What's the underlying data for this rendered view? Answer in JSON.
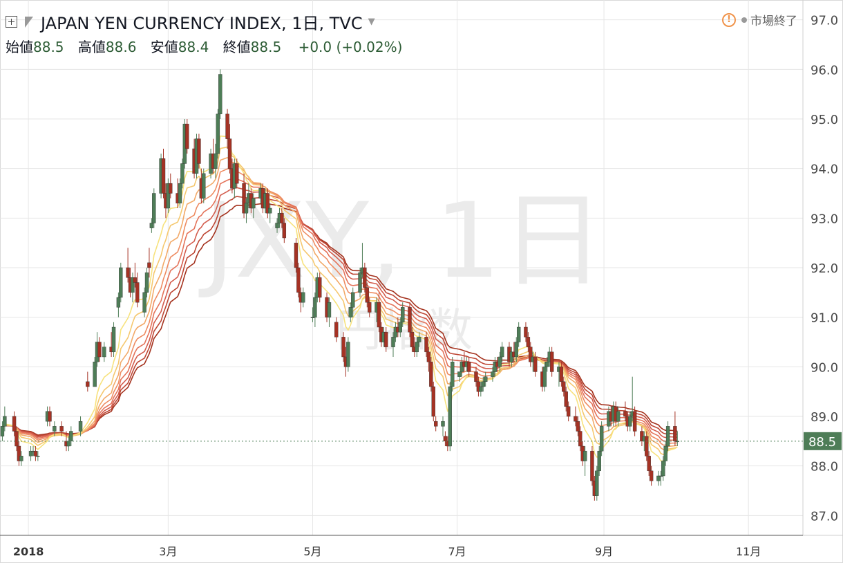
{
  "header": {
    "symbol_title": "JAPAN YEN CURRENCY INDEX, 1日, TVC",
    "market_status": "市場終了",
    "alert_glyph": "!"
  },
  "ohlc": {
    "open_label": "始値",
    "open": "88.5",
    "high_label": "高値",
    "high": "88.6",
    "low_label": "安値",
    "low": "88.4",
    "close_label": "終値",
    "close": "88.5",
    "change": "+0.0 (+0.02%)"
  },
  "watermark": {
    "ticker": "JXY, 1日",
    "name": "円指数"
  },
  "price_tag": "88.5",
  "colors": {
    "up": "#4e7d57",
    "down": "#a53224",
    "grid": "#e6e6e6",
    "price_tag_bg": "#4e7d57",
    "ribbon_fast": "#f7e27d",
    "ribbon_slow": "#a4321e"
  },
  "chart_data": {
    "type": "candlestick",
    "title": "JAPAN YEN CURRENCY INDEX, 1日, TVC",
    "y_axis": {
      "ticks": [
        "87.0",
        "88.0",
        "89.0",
        "90.0",
        "91.0",
        "92.0",
        "93.0",
        "94.0",
        "95.0",
        "96.0",
        "97.0"
      ],
      "range": [
        86.6,
        97.4
      ],
      "position": "right"
    },
    "x_axis": {
      "ticks": [
        "2018",
        "3月",
        "5月",
        "7月",
        "9月",
        "11月"
      ],
      "range": [
        "2017-12-20",
        "2018-11-24"
      ]
    },
    "last_price": 88.5,
    "grid": true,
    "overlay": "moving-average ribbon (8 lines, yellow to dark red)",
    "candles": [
      [
        "2017-12-21",
        88.6,
        88.9,
        88.5,
        88.8
      ],
      [
        "2017-12-22",
        88.8,
        89.2,
        88.7,
        89.0
      ],
      [
        "2017-12-26",
        89.0,
        89.1,
        88.6,
        88.7
      ],
      [
        "2017-12-27",
        88.7,
        88.8,
        88.3,
        88.4
      ],
      [
        "2017-12-28",
        88.4,
        88.5,
        88.0,
        88.1
      ],
      [
        "2017-12-29",
        88.1,
        88.3,
        88.0,
        88.2
      ],
      [
        "2018-01-02",
        88.2,
        88.4,
        88.1,
        88.3
      ],
      [
        "2018-01-03",
        88.3,
        88.4,
        88.2,
        88.3
      ],
      [
        "2018-01-04",
        88.3,
        88.4,
        88.1,
        88.2
      ],
      [
        "2018-01-05",
        88.2,
        88.3,
        88.1,
        88.2
      ],
      [
        "2018-01-09",
        88.9,
        89.2,
        88.8,
        89.1
      ],
      [
        "2018-01-10",
        89.1,
        89.2,
        88.8,
        88.9
      ],
      [
        "2018-01-12",
        88.7,
        88.9,
        88.6,
        88.8
      ],
      [
        "2018-01-15",
        88.8,
        88.9,
        88.6,
        88.7
      ],
      [
        "2018-01-17",
        88.5,
        88.7,
        88.3,
        88.4
      ],
      [
        "2018-01-18",
        88.4,
        88.6,
        88.3,
        88.5
      ],
      [
        "2018-01-19",
        88.5,
        88.8,
        88.4,
        88.7
      ],
      [
        "2018-01-23",
        88.7,
        89.0,
        88.6,
        88.9
      ],
      [
        "2018-01-26",
        89.7,
        89.9,
        89.5,
        89.6
      ],
      [
        "2018-01-29",
        89.6,
        90.2,
        89.6,
        90.1
      ],
      [
        "2018-01-30",
        90.1,
        90.7,
        90.0,
        90.5
      ],
      [
        "2018-01-31",
        90.5,
        90.6,
        90.1,
        90.2
      ],
      [
        "2018-02-02",
        90.2,
        90.5,
        90.1,
        90.4
      ],
      [
        "2018-02-05",
        90.4,
        90.7,
        90.2,
        90.3
      ],
      [
        "2018-02-06",
        90.3,
        90.9,
        90.2,
        90.8
      ],
      [
        "2018-02-08",
        91.2,
        91.5,
        91.0,
        91.4
      ],
      [
        "2018-02-09",
        91.4,
        92.1,
        91.3,
        92.0
      ],
      [
        "2018-02-12",
        92.0,
        92.4,
        91.7,
        91.8
      ],
      [
        "2018-02-13",
        91.8,
        92.0,
        91.4,
        91.5
      ],
      [
        "2018-02-14",
        91.5,
        91.9,
        91.3,
        91.8
      ],
      [
        "2018-02-15",
        91.8,
        92.1,
        91.6,
        91.7
      ],
      [
        "2018-02-16",
        91.7,
        91.9,
        91.2,
        91.3
      ],
      [
        "2018-02-19",
        91.1,
        91.6,
        91.0,
        91.5
      ],
      [
        "2018-02-20",
        91.5,
        92.0,
        91.4,
        91.9
      ],
      [
        "2018-02-21",
        92.1,
        92.4,
        91.8,
        92.0
      ],
      [
        "2018-02-22",
        92.8,
        93.0,
        92.7,
        92.9
      ],
      [
        "2018-02-23",
        92.9,
        93.6,
        92.8,
        93.5
      ],
      [
        "2018-02-26",
        93.5,
        94.3,
        93.4,
        94.2
      ],
      [
        "2018-02-27",
        94.2,
        94.4,
        93.4,
        93.5
      ],
      [
        "2018-02-28",
        93.5,
        93.7,
        93.0,
        93.2
      ],
      [
        "2018-03-01",
        93.2,
        93.8,
        93.1,
        93.7
      ],
      [
        "2018-03-02",
        93.7,
        93.9,
        93.4,
        93.5
      ],
      [
        "2018-03-05",
        93.5,
        93.8,
        93.2,
        93.3
      ],
      [
        "2018-03-06",
        93.3,
        93.8,
        93.2,
        93.7
      ],
      [
        "2018-03-07",
        93.7,
        94.2,
        93.6,
        94.1
      ],
      [
        "2018-03-08",
        94.1,
        95.0,
        94.0,
        94.9
      ],
      [
        "2018-03-09",
        94.9,
        95.0,
        94.3,
        94.4
      ],
      [
        "2018-03-12",
        94.4,
        94.6,
        93.8,
        93.9
      ],
      [
        "2018-03-13",
        93.9,
        94.7,
        93.8,
        94.6
      ],
      [
        "2018-03-14",
        94.6,
        94.7,
        94.0,
        94.1
      ],
      [
        "2018-03-15",
        93.8,
        94.0,
        93.3,
        93.4
      ],
      [
        "2018-03-16",
        93.4,
        94.0,
        93.3,
        93.9
      ],
      [
        "2018-03-19",
        93.9,
        94.4,
        93.8,
        94.3
      ],
      [
        "2018-03-20",
        94.3,
        94.6,
        93.9,
        94.0
      ],
      [
        "2018-03-21",
        94.0,
        94.5,
        93.8,
        94.3
      ],
      [
        "2018-03-22",
        94.3,
        95.2,
        94.2,
        95.1
      ],
      [
        "2018-03-23",
        95.1,
        96.0,
        95.0,
        95.9
      ],
      [
        "2018-03-26",
        95.1,
        95.2,
        94.4,
        94.6
      ],
      [
        "2018-03-27",
        94.6,
        94.9,
        93.9,
        94.0
      ],
      [
        "2018-03-28",
        94.0,
        94.2,
        93.5,
        93.6
      ],
      [
        "2018-03-29",
        93.6,
        94.2,
        93.4,
        94.1
      ],
      [
        "2018-03-30",
        94.1,
        94.2,
        93.6,
        93.7
      ],
      [
        "2018-04-02",
        93.7,
        93.9,
        93.0,
        93.1
      ],
      [
        "2018-04-03",
        93.1,
        93.4,
        92.9,
        93.3
      ],
      [
        "2018-04-04",
        93.3,
        93.7,
        93.2,
        93.5
      ],
      [
        "2018-04-05",
        93.5,
        93.6,
        93.1,
        93.2
      ],
      [
        "2018-04-06",
        93.2,
        93.5,
        93.0,
        93.4
      ],
      [
        "2018-04-09",
        93.4,
        93.7,
        93.3,
        93.6
      ],
      [
        "2018-04-10",
        93.6,
        93.7,
        93.1,
        93.2
      ],
      [
        "2018-04-11",
        93.2,
        93.6,
        93.1,
        93.5
      ],
      [
        "2018-04-12",
        93.5,
        93.6,
        93.0,
        93.1
      ],
      [
        "2018-04-13",
        93.1,
        93.3,
        92.9,
        93.2
      ],
      [
        "2018-04-16",
        92.8,
        93.0,
        92.7,
        92.9
      ],
      [
        "2018-04-17",
        92.9,
        93.2,
        92.8,
        93.1
      ],
      [
        "2018-04-18",
        93.1,
        93.2,
        92.8,
        92.9
      ],
      [
        "2018-04-19",
        92.9,
        93.0,
        92.5,
        92.6
      ],
      [
        "2018-04-24",
        92.5,
        92.6,
        91.9,
        92.0
      ],
      [
        "2018-04-25",
        92.0,
        92.1,
        91.4,
        91.5
      ],
      [
        "2018-04-26",
        91.5,
        91.6,
        91.1,
        91.3
      ],
      [
        "2018-04-27",
        91.3,
        91.6,
        91.2,
        91.5
      ],
      [
        "2018-05-01",
        91.0,
        91.2,
        90.9,
        91.0
      ],
      [
        "2018-05-02",
        91.0,
        91.5,
        90.8,
        91.4
      ],
      [
        "2018-05-03",
        91.4,
        91.9,
        91.3,
        91.8
      ],
      [
        "2018-05-04",
        91.8,
        91.9,
        91.3,
        91.4
      ],
      [
        "2018-05-07",
        91.4,
        91.5,
        90.9,
        91.0
      ],
      [
        "2018-05-08",
        91.0,
        91.4,
        90.8,
        91.3
      ],
      [
        "2018-05-11",
        90.9,
        91.0,
        90.5,
        90.6
      ],
      [
        "2018-05-14",
        90.6,
        90.7,
        90.1,
        90.2
      ],
      [
        "2018-05-15",
        90.2,
        90.4,
        89.8,
        90.0
      ],
      [
        "2018-05-16",
        90.0,
        90.6,
        89.9,
        90.5
      ],
      [
        "2018-05-17",
        91.0,
        91.3,
        90.9,
        91.2
      ],
      [
        "2018-05-18",
        91.2,
        91.6,
        91.0,
        91.5
      ],
      [
        "2018-05-21",
        91.5,
        92.0,
        91.4,
        91.9
      ],
      [
        "2018-05-22",
        91.9,
        92.5,
        91.8,
        92.0
      ],
      [
        "2018-05-23",
        92.0,
        92.1,
        91.5,
        91.6
      ],
      [
        "2018-05-24",
        91.6,
        91.7,
        91.2,
        91.3
      ],
      [
        "2018-05-25",
        91.3,
        91.4,
        91.0,
        91.1
      ],
      [
        "2018-05-28",
        91.1,
        91.4,
        90.9,
        91.3
      ],
      [
        "2018-05-29",
        91.3,
        91.5,
        90.7,
        90.8
      ],
      [
        "2018-05-30",
        90.8,
        90.9,
        90.4,
        90.5
      ],
      [
        "2018-05-31",
        90.5,
        90.8,
        90.4,
        90.7
      ],
      [
        "2018-06-01",
        90.7,
        90.8,
        90.3,
        90.4
      ],
      [
        "2018-06-04",
        90.4,
        90.7,
        90.2,
        90.6
      ],
      [
        "2018-06-05",
        90.6,
        90.9,
        90.5,
        90.8
      ],
      [
        "2018-06-06",
        90.8,
        91.0,
        90.6,
        90.7
      ],
      [
        "2018-06-07",
        90.7,
        91.0,
        90.6,
        90.9
      ],
      [
        "2018-06-08",
        90.9,
        91.3,
        90.8,
        91.2
      ],
      [
        "2018-06-11",
        91.2,
        91.3,
        90.6,
        90.7
      ],
      [
        "2018-06-12",
        90.7,
        90.8,
        90.3,
        90.4
      ],
      [
        "2018-06-13",
        90.4,
        90.6,
        90.2,
        90.3
      ],
      [
        "2018-06-14",
        90.3,
        90.6,
        90.2,
        90.5
      ],
      [
        "2018-06-15",
        90.5,
        90.7,
        90.4,
        90.6
      ],
      [
        "2018-06-18",
        90.6,
        90.7,
        90.2,
        90.3
      ],
      [
        "2018-06-19",
        90.3,
        90.4,
        89.9,
        90.1
      ],
      [
        "2018-06-20",
        90.1,
        90.2,
        89.5,
        89.6
      ],
      [
        "2018-06-21",
        89.6,
        89.7,
        88.9,
        89.0
      ],
      [
        "2018-06-22",
        88.9,
        89.0,
        88.7,
        88.8
      ],
      [
        "2018-06-25",
        88.8,
        89.0,
        88.6,
        88.9
      ],
      [
        "2018-06-26",
        88.6,
        88.7,
        88.4,
        88.5
      ],
      [
        "2018-06-27",
        88.5,
        88.6,
        88.3,
        88.4
      ],
      [
        "2018-06-28",
        88.4,
        89.7,
        88.3,
        89.6
      ],
      [
        "2018-06-29",
        89.6,
        90.2,
        89.5,
        90.1
      ],
      [
        "2018-07-02",
        89.8,
        89.9,
        89.7,
        89.9
      ],
      [
        "2018-07-03",
        89.9,
        90.2,
        89.8,
        90.1
      ],
      [
        "2018-07-04",
        90.1,
        90.3,
        89.9,
        90.0
      ],
      [
        "2018-07-05",
        90.0,
        90.2,
        89.9,
        90.1
      ],
      [
        "2018-07-06",
        90.1,
        90.2,
        89.8,
        89.9
      ],
      [
        "2018-07-09",
        89.9,
        90.0,
        89.6,
        89.7
      ],
      [
        "2018-07-10",
        89.7,
        89.8,
        89.4,
        89.5
      ],
      [
        "2018-07-11",
        89.5,
        89.7,
        89.4,
        89.6
      ],
      [
        "2018-07-12",
        89.6,
        89.8,
        89.5,
        89.7
      ],
      [
        "2018-07-13",
        89.7,
        89.9,
        89.6,
        89.8
      ],
      [
        "2018-07-16",
        89.8,
        90.0,
        89.7,
        89.9
      ],
      [
        "2018-07-17",
        89.9,
        90.2,
        89.8,
        90.1
      ],
      [
        "2018-07-18",
        90.1,
        90.2,
        89.9,
        90.0
      ],
      [
        "2018-07-19",
        90.0,
        90.3,
        89.9,
        90.2
      ],
      [
        "2018-07-20",
        90.2,
        90.5,
        90.1,
        90.4
      ],
      [
        "2018-07-23",
        90.4,
        90.5,
        90.0,
        90.1
      ],
      [
        "2018-07-24",
        90.1,
        90.4,
        90.0,
        90.3
      ],
      [
        "2018-07-25",
        90.3,
        90.5,
        90.1,
        90.2
      ],
      [
        "2018-07-26",
        90.2,
        90.6,
        90.1,
        90.5
      ],
      [
        "2018-07-27",
        90.5,
        90.9,
        90.4,
        90.8
      ],
      [
        "2018-07-30",
        90.8,
        90.9,
        90.5,
        90.6
      ],
      [
        "2018-07-31",
        90.6,
        90.7,
        90.3,
        90.4
      ],
      [
        "2018-08-01",
        90.4,
        90.5,
        90.0,
        90.1
      ],
      [
        "2018-08-02",
        90.1,
        90.3,
        89.9,
        90.2
      ],
      [
        "2018-08-03",
        90.2,
        90.3,
        89.8,
        89.9
      ],
      [
        "2018-08-06",
        89.9,
        90.0,
        89.5,
        89.6
      ],
      [
        "2018-08-07",
        89.6,
        90.1,
        89.5,
        90.0
      ],
      [
        "2018-08-08",
        90.0,
        90.2,
        89.9,
        90.1
      ],
      [
        "2018-08-09",
        90.1,
        90.4,
        90.0,
        90.3
      ],
      [
        "2018-08-10",
        90.3,
        90.4,
        89.8,
        89.9
      ],
      [
        "2018-08-13",
        89.9,
        90.1,
        89.6,
        90.0
      ],
      [
        "2018-08-14",
        90.0,
        90.1,
        89.6,
        89.7
      ],
      [
        "2018-08-15",
        89.7,
        89.8,
        89.4,
        89.5
      ],
      [
        "2018-08-16",
        89.5,
        89.6,
        89.1,
        89.2
      ],
      [
        "2018-08-17",
        89.2,
        89.3,
        88.9,
        89.0
      ],
      [
        "2018-08-20",
        89.0,
        89.2,
        88.8,
        88.9
      ],
      [
        "2018-08-21",
        88.9,
        89.0,
        88.6,
        88.7
      ],
      [
        "2018-08-22",
        88.7,
        88.8,
        88.3,
        88.4
      ],
      [
        "2018-08-23",
        88.4,
        88.5,
        88.0,
        88.1
      ],
      [
        "2018-08-24",
        88.1,
        88.4,
        87.8,
        88.3
      ],
      [
        "2018-08-27",
        88.3,
        88.4,
        87.6,
        87.7
      ],
      [
        "2018-08-28",
        87.7,
        87.8,
        87.3,
        87.4
      ],
      [
        "2018-08-29",
        87.4,
        88.0,
        87.3,
        87.9
      ],
      [
        "2018-08-30",
        87.9,
        88.4,
        87.8,
        88.3
      ],
      [
        "2018-08-31",
        88.3,
        88.9,
        88.2,
        88.8
      ],
      [
        "2018-09-03",
        88.8,
        89.2,
        88.7,
        89.1
      ],
      [
        "2018-09-04",
        89.1,
        89.2,
        88.8,
        88.9
      ],
      [
        "2018-09-05",
        88.9,
        89.3,
        88.8,
        89.2
      ],
      [
        "2018-09-06",
        89.2,
        89.3,
        88.8,
        88.9
      ],
      [
        "2018-09-07",
        88.9,
        89.2,
        88.8,
        89.1
      ],
      [
        "2018-09-10",
        89.1,
        89.3,
        88.9,
        89.0
      ],
      [
        "2018-09-11",
        89.0,
        89.1,
        88.7,
        88.8
      ],
      [
        "2018-09-12",
        88.8,
        89.1,
        88.7,
        89.0
      ],
      [
        "2018-09-13",
        89.0,
        89.8,
        88.9,
        89.1
      ],
      [
        "2018-09-14",
        89.1,
        89.2,
        88.6,
        88.7
      ],
      [
        "2018-09-17",
        88.7,
        88.8,
        88.4,
        88.5
      ],
      [
        "2018-09-18",
        88.5,
        88.7,
        88.3,
        88.6
      ],
      [
        "2018-09-19",
        88.6,
        88.7,
        88.1,
        88.2
      ],
      [
        "2018-09-20",
        88.2,
        88.3,
        87.8,
        87.9
      ],
      [
        "2018-09-21",
        87.9,
        88.0,
        87.6,
        87.7
      ],
      [
        "2018-09-24",
        87.7,
        87.9,
        87.6,
        87.8
      ],
      [
        "2018-09-25",
        87.8,
        87.9,
        87.6,
        87.8
      ],
      [
        "2018-09-26",
        87.8,
        88.2,
        87.7,
        88.1
      ],
      [
        "2018-09-27",
        88.1,
        88.5,
        88.0,
        88.4
      ],
      [
        "2018-09-28",
        88.4,
        88.9,
        88.3,
        88.8
      ],
      [
        "2018-10-01",
        88.8,
        89.1,
        88.4,
        88.5
      ],
      [
        "2018-10-02",
        88.5,
        88.7,
        88.4,
        88.5
      ]
    ]
  }
}
